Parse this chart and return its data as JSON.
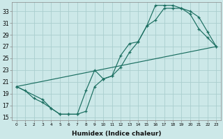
{
  "xlabel": "Humidex (Indice chaleur)",
  "bg_color": "#cce8e8",
  "grid_color": "#aacece",
  "line_color": "#1a6e60",
  "xlim": [
    -0.5,
    23.5
  ],
  "ylim": [
    14.5,
    34.5
  ],
  "yticks": [
    15,
    17,
    19,
    21,
    23,
    25,
    27,
    29,
    31,
    33
  ],
  "xticks": [
    0,
    1,
    2,
    3,
    4,
    5,
    6,
    7,
    8,
    9,
    10,
    11,
    12,
    13,
    14,
    15,
    16,
    17,
    18,
    19,
    20,
    21,
    22,
    23
  ],
  "line1_x": [
    0,
    1,
    2,
    3,
    4,
    5,
    6,
    7,
    8,
    9,
    10,
    11,
    12,
    13,
    14,
    15,
    16,
    17,
    18,
    19,
    20,
    21,
    22,
    23
  ],
  "line1_y": [
    20.2,
    19.5,
    18.2,
    17.5,
    16.5,
    15.5,
    15.5,
    15.5,
    16.0,
    20.2,
    21.5,
    22.0,
    23.5,
    26.0,
    27.8,
    30.5,
    34.0,
    34.0,
    34.0,
    33.5,
    32.5,
    30.0,
    28.5,
    27.0
  ],
  "line2_x": [
    0,
    3,
    4,
    5,
    6,
    7,
    8,
    9,
    10,
    11,
    12,
    13,
    14,
    15,
    16,
    17,
    18,
    19,
    20,
    21,
    22,
    23
  ],
  "line2_y": [
    20.2,
    18.0,
    16.5,
    15.5,
    15.5,
    15.5,
    19.5,
    23.0,
    21.5,
    22.0,
    25.5,
    27.5,
    27.8,
    30.5,
    31.5,
    33.5,
    33.5,
    33.5,
    33.0,
    32.0,
    29.5,
    27.0
  ],
  "line3_x": [
    0,
    23
  ],
  "line3_y": [
    20.2,
    27.0
  ]
}
